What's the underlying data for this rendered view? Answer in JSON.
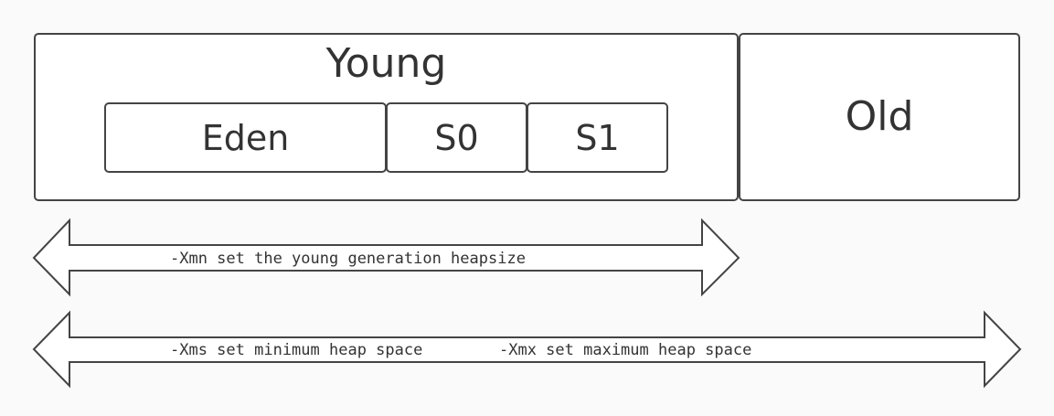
{
  "generations": {
    "young": "Young",
    "old": "Old",
    "eden": "Eden",
    "s0": "S0",
    "s1": "S1"
  },
  "arrows": {
    "young_flag": "-Xmn set the young generation heapsize",
    "min_flag": "-Xms set minimum heap space",
    "max_flag": "-Xmx set maximum heap space"
  },
  "colors": {
    "stroke": "#444444",
    "box_fill": "#ffffff",
    "background": "#fafafa",
    "text": "#333333"
  }
}
